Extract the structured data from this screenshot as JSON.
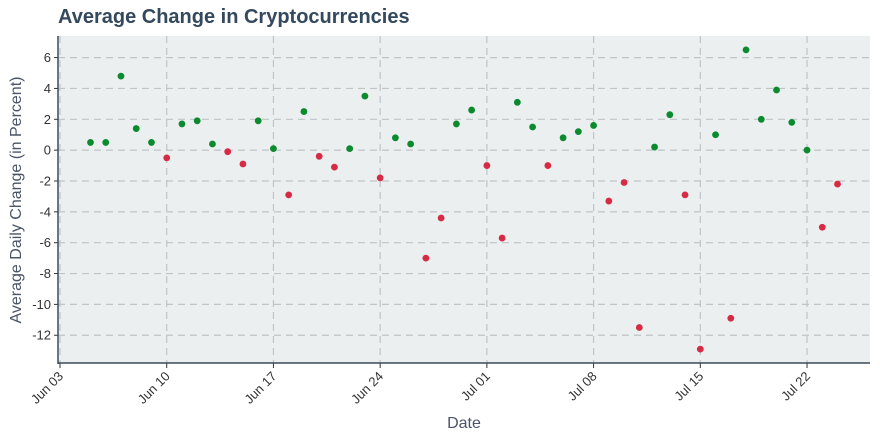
{
  "chart_data": {
    "type": "scatter",
    "title": "Average Change in Cryptocurrencies",
    "xlabel": "Date",
    "ylabel": "Average Daily Change (in Percent)",
    "x_tick_labels": [
      "Jun 03",
      "Jun 10",
      "Jun 17",
      "Jun 24",
      "Jul 01",
      "Jul 08",
      "Jul 15",
      "Jul 22"
    ],
    "x_tick_dates": [
      "2024-06-03",
      "2024-06-10",
      "2024-06-17",
      "2024-06-24",
      "2024-07-01",
      "2024-07-08",
      "2024-07-15",
      "2024-07-22"
    ],
    "y_ticks": [
      6,
      4,
      2,
      0,
      -2,
      -4,
      -6,
      -8,
      -10,
      -12
    ],
    "ylim": [
      -13.8,
      7.4
    ],
    "xlim": [
      "2024-06-03",
      "2024-07-26"
    ],
    "grid": true,
    "colors": {
      "positive": "#0b8a2e",
      "negative": "#d62b45",
      "plot_bg": "#ebeff0"
    },
    "points": [
      {
        "x": "2024-06-05",
        "y": 0.5
      },
      {
        "x": "2024-06-06",
        "y": 0.5
      },
      {
        "x": "2024-06-07",
        "y": 4.8
      },
      {
        "x": "2024-06-08",
        "y": 1.4
      },
      {
        "x": "2024-06-09",
        "y": 0.5
      },
      {
        "x": "2024-06-10",
        "y": -0.5
      },
      {
        "x": "2024-06-11",
        "y": 1.7
      },
      {
        "x": "2024-06-12",
        "y": 1.9
      },
      {
        "x": "2024-06-13",
        "y": 0.4
      },
      {
        "x": "2024-06-14",
        "y": -0.1
      },
      {
        "x": "2024-06-15",
        "y": -0.9
      },
      {
        "x": "2024-06-16",
        "y": 1.9
      },
      {
        "x": "2024-06-17",
        "y": 0.1
      },
      {
        "x": "2024-06-18",
        "y": -2.9
      },
      {
        "x": "2024-06-19",
        "y": 2.5
      },
      {
        "x": "2024-06-20",
        "y": -0.4
      },
      {
        "x": "2024-06-21",
        "y": -1.1
      },
      {
        "x": "2024-06-22",
        "y": 0.1
      },
      {
        "x": "2024-06-23",
        "y": 3.5
      },
      {
        "x": "2024-06-24",
        "y": -1.8
      },
      {
        "x": "2024-06-25",
        "y": 0.8
      },
      {
        "x": "2024-06-26",
        "y": 0.4
      },
      {
        "x": "2024-06-27",
        "y": -7.0
      },
      {
        "x": "2024-06-28",
        "y": -4.4
      },
      {
        "x": "2024-06-29",
        "y": 1.7
      },
      {
        "x": "2024-06-30",
        "y": 2.6
      },
      {
        "x": "2024-07-01",
        "y": -1.0
      },
      {
        "x": "2024-07-02",
        "y": -5.7
      },
      {
        "x": "2024-07-03",
        "y": 3.1
      },
      {
        "x": "2024-07-04",
        "y": 1.5
      },
      {
        "x": "2024-07-05",
        "y": -1.0
      },
      {
        "x": "2024-07-06",
        "y": 0.8
      },
      {
        "x": "2024-07-07",
        "y": 1.2
      },
      {
        "x": "2024-07-08",
        "y": 1.6
      },
      {
        "x": "2024-07-09",
        "y": -3.3
      },
      {
        "x": "2024-07-10",
        "y": -2.1
      },
      {
        "x": "2024-07-11",
        "y": -11.5
      },
      {
        "x": "2024-07-12",
        "y": 0.2
      },
      {
        "x": "2024-07-13",
        "y": 2.3
      },
      {
        "x": "2024-07-14",
        "y": -2.9
      },
      {
        "x": "2024-07-15",
        "y": -12.9
      },
      {
        "x": "2024-07-16",
        "y": 1.0
      },
      {
        "x": "2024-07-17",
        "y": -10.9
      },
      {
        "x": "2024-07-18",
        "y": 6.5
      },
      {
        "x": "2024-07-19",
        "y": 2.0
      },
      {
        "x": "2024-07-20",
        "y": 3.9
      },
      {
        "x": "2024-07-21",
        "y": 1.8
      },
      {
        "x": "2024-07-22",
        "y": 0.0
      },
      {
        "x": "2024-07-23",
        "y": -5.0
      },
      {
        "x": "2024-07-24",
        "y": -2.2
      }
    ]
  }
}
